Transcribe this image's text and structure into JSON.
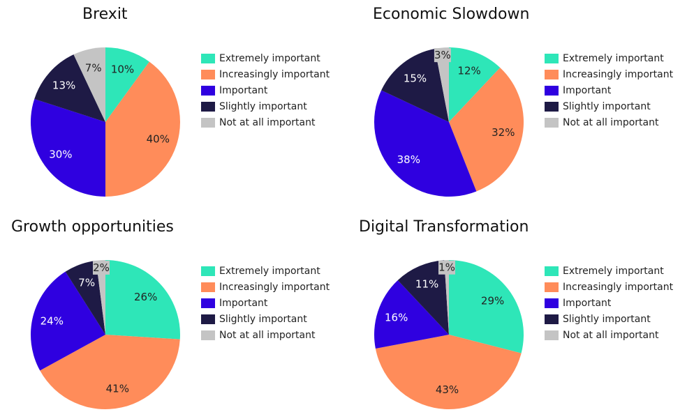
{
  "colors": {
    "extremely": "#2ee6b8",
    "increasingly": "#ff8c5a",
    "important": "#2f00e0",
    "slightly": "#1e1a45",
    "not_at_all": "#c4c4c4"
  },
  "legend": [
    {
      "label": "Extremely important",
      "color_key": "extremely"
    },
    {
      "label": "Increasingly important",
      "color_key": "increasingly"
    },
    {
      "label": "Important",
      "color_key": "important"
    },
    {
      "label": "Slightly important",
      "color_key": "slightly"
    },
    {
      "label": "Not at all important",
      "color_key": "not_at_all"
    }
  ],
  "chart_data": [
    {
      "type": "pie",
      "title": "Brexit",
      "categories": [
        "Extremely important",
        "Increasingly important",
        "Important",
        "Slightly important",
        "Not at all important"
      ],
      "values": [
        10,
        40,
        30,
        13,
        7
      ],
      "labels": [
        "10%",
        "40%",
        "30%",
        "13%",
        "7%"
      ],
      "legend_position": "right"
    },
    {
      "type": "pie",
      "title": "Economic Slowdown",
      "categories": [
        "Extremely important",
        "Increasingly important",
        "Important",
        "Slightly important",
        "Not at all important"
      ],
      "values": [
        12,
        32,
        38,
        15,
        3
      ],
      "labels": [
        "12%",
        "32%",
        "38%",
        "15%",
        "3%"
      ],
      "legend_position": "right"
    },
    {
      "type": "pie",
      "title": "Growth opportunities",
      "categories": [
        "Extremely important",
        "Increasingly important",
        "Important",
        "Slightly important",
        "Not at all important"
      ],
      "values": [
        26,
        41,
        24,
        7,
        2
      ],
      "labels": [
        "26%",
        "41%",
        "24%",
        "7%",
        "2%"
      ],
      "legend_position": "right"
    },
    {
      "type": "pie",
      "title": "Digital Transformation",
      "categories": [
        "Extremely important",
        "Increasingly important",
        "Important",
        "Slightly important",
        "Not at all important"
      ],
      "values": [
        29,
        43,
        16,
        11,
        1
      ],
      "labels": [
        "29%",
        "43%",
        "16%",
        "11%",
        "1%"
      ],
      "legend_position": "right"
    }
  ]
}
